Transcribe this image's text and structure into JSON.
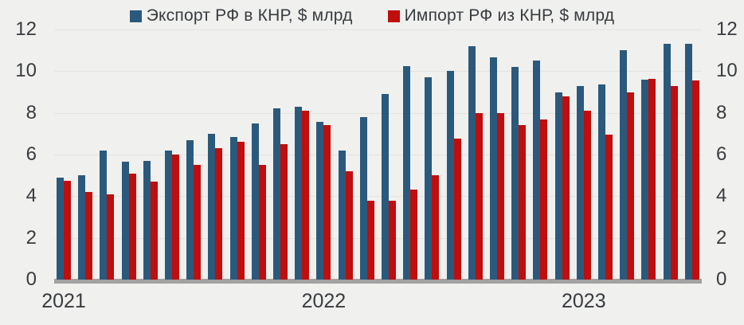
{
  "colors": {
    "background": "#F0F0EE",
    "grid": "#E5E2DF",
    "axis_bar": "#A2A2A2",
    "text": "#383C40",
    "export_blue": "#2B597C",
    "import_red": "#C00D0D"
  },
  "chart_data": {
    "type": "bar",
    "title": "",
    "xlabel": "",
    "ylabel": "",
    "ylim": [
      0,
      12
    ],
    "yticks": [
      0,
      2,
      4,
      6,
      8,
      10,
      12
    ],
    "grid": true,
    "legend_position": "top",
    "x": [
      "2021-01",
      "2021-02",
      "2021-03",
      "2021-04",
      "2021-05",
      "2021-06",
      "2021-07",
      "2021-08",
      "2021-09",
      "2021-10",
      "2021-11",
      "2021-12",
      "2022-01",
      "2022-02",
      "2022-03",
      "2022-04",
      "2022-05",
      "2022-06",
      "2022-07",
      "2022-08",
      "2022-09",
      "2022-10",
      "2022-11",
      "2022-12",
      "2023-01",
      "2023-02",
      "2023-03",
      "2023-04",
      "2023-05",
      "2023-06"
    ],
    "x_year_ticks": [
      {
        "label": "2021",
        "group_index": 0
      },
      {
        "label": "2022",
        "group_index": 12
      },
      {
        "label": "2023",
        "group_index": 24
      }
    ],
    "series": [
      {
        "name": "Экспорт РФ в КНР, $ млрд",
        "color": "#2B597C",
        "values": [
          4.9,
          5.0,
          6.2,
          5.65,
          5.7,
          6.2,
          6.7,
          7.0,
          6.85,
          7.5,
          8.2,
          8.3,
          7.55,
          6.2,
          7.8,
          8.9,
          10.25,
          9.7,
          10.0,
          11.2,
          10.65,
          10.2,
          10.5,
          9.0,
          9.3,
          9.35,
          11.0,
          9.6,
          11.3,
          11.3
        ]
      },
      {
        "name": "Импорт РФ из КНР, $ млрд",
        "color": "#C00D0D",
        "values": [
          4.75,
          4.2,
          4.1,
          5.1,
          4.7,
          6.0,
          5.5,
          6.3,
          6.6,
          5.5,
          6.5,
          8.1,
          7.4,
          5.2,
          3.8,
          3.8,
          4.3,
          5.0,
          6.75,
          8.0,
          8.0,
          7.4,
          7.7,
          8.8,
          8.1,
          6.95,
          9.0,
          9.65,
          9.3,
          9.55
        ]
      }
    ]
  }
}
